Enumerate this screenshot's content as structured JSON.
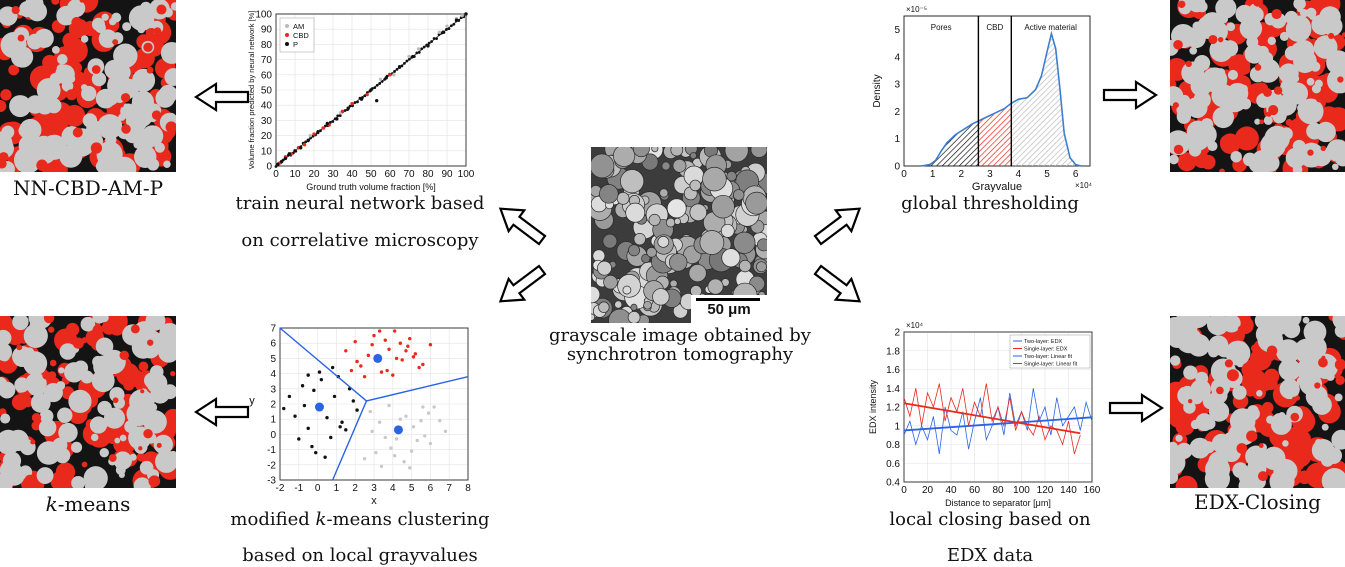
{
  "center": {
    "scale_bar": "50 μm",
    "caption_line1": "grayscale image obtained by",
    "caption_line2": "synchrotron tomography"
  },
  "panels": {
    "nn": {
      "result_label": "NN-CBD-AM-P",
      "caption_line1": "train neural network based",
      "caption_line2": "on correlative microscopy"
    },
    "kmeans": {
      "result_label_italic": "k",
      "result_label_rest": "-means",
      "caption_line1_pre": "modified ",
      "caption_line1_italic": "k",
      "caption_line1_post": "-means clustering",
      "caption_line2": "based on local grayvalues"
    },
    "threshold": {
      "caption_line1": "global thresholding"
    },
    "edx": {
      "result_label": "EDX-Closing",
      "caption_line1": "local closing based on",
      "caption_line2": "EDX data"
    }
  },
  "colors": {
    "cbd_red": "#e8291c",
    "am_gray": "#c9c9c9",
    "pore_black": "#141414",
    "blue": "#2b63e6"
  },
  "chart_data": [
    {
      "type": "scatter",
      "xlabel": "Ground truth volume fraction [%]",
      "ylabel": "Volume fraction predicted by neural network [%]",
      "xlim": [
        0,
        100
      ],
      "ylim": [
        0,
        100
      ],
      "xticks": [
        "0",
        "10",
        "20",
        "30",
        "40",
        "50",
        "60",
        "70",
        "80",
        "90",
        "100"
      ],
      "yticks": [
        "0",
        "10",
        "20",
        "30",
        "40",
        "50",
        "60",
        "70",
        "80",
        "90",
        "100"
      ],
      "legend": [
        "AM",
        "CBD",
        "P"
      ],
      "legend_position": "top-left",
      "grid": true,
      "series": [
        {
          "name": "AM",
          "color": "#bdbdbd",
          "x": [
            18,
            34,
            55,
            62,
            70,
            75,
            86,
            90,
            95,
            98
          ],
          "y": [
            20,
            35,
            57,
            60,
            72,
            77,
            88,
            92,
            97,
            99
          ]
        },
        {
          "name": "CBD",
          "color": "#e8291c",
          "x": [
            2,
            5,
            8,
            12,
            15,
            20,
            25,
            28,
            35,
            40,
            48,
            60
          ],
          "y": [
            2,
            6,
            8,
            12,
            14,
            21,
            25,
            27,
            36,
            41,
            47,
            60
          ]
        },
        {
          "name": "P",
          "color": "#111111",
          "x": [
            1,
            3,
            5,
            7,
            10,
            13,
            17,
            22,
            27,
            32,
            38,
            45,
            50,
            53,
            58,
            65,
            72,
            80,
            88,
            95,
            100
          ],
          "y": [
            1,
            3,
            5,
            8,
            10,
            12,
            17,
            22,
            28,
            31,
            38,
            44,
            50,
            43,
            58,
            65,
            72,
            79,
            88,
            96,
            100
          ]
        }
      ]
    },
    {
      "type": "scatter",
      "xlabel": "x",
      "ylabel": "y",
      "xlim": [
        -2,
        8
      ],
      "ylim": [
        -3,
        7
      ],
      "xticks": [
        "-2",
        "-1",
        "0",
        "1",
        "2",
        "3",
        "4",
        "5",
        "6",
        "7",
        "8"
      ],
      "yticks": [
        "-3",
        "-2",
        "-1",
        "0",
        "1",
        "2",
        "3",
        "4",
        "5",
        "6",
        "7"
      ],
      "grid": true,
      "centroids": [
        {
          "x": 3.2,
          "y": 5.0
        },
        {
          "x": 0.1,
          "y": 1.8
        },
        {
          "x": 4.3,
          "y": 0.3
        }
      ],
      "series": [
        {
          "color": "#e8291c",
          "x": [
            1.5,
            2,
            2.3,
            2.7,
            3,
            3.4,
            3.8,
            4.1,
            4.5,
            4.8,
            5.2,
            5.6,
            6,
            2.5,
            3.1,
            3.6,
            4.2,
            4.9,
            5.4,
            2.1,
            2.9,
            3.7,
            4.4,
            5.1,
            1.8,
            3.3,
            4.0,
            4.7
          ],
          "y": [
            5.5,
            6.1,
            4.5,
            5.2,
            6.5,
            4.1,
            5.6,
            6.8,
            4.9,
            5.8,
            5.3,
            4.6,
            5.9,
            3.8,
            4.9,
            6.2,
            5.0,
            6.3,
            4.4,
            4.8,
            5.9,
            4.2,
            6.0,
            5.1,
            4.2,
            6.8,
            3.9,
            5.5
          ]
        },
        {
          "color": "#111111",
          "x": [
            -1.5,
            -1.2,
            -0.8,
            -0.5,
            -0.2,
            0.2,
            0.5,
            0.9,
            1.3,
            1.7,
            2.1,
            -1.0,
            -0.3,
            0.7,
            1.5,
            -0.7,
            0.1,
            1.1,
            1.9,
            -1.8,
            -0.1,
            0.4,
            1.2,
            -0.5,
            0.8
          ],
          "y": [
            2.5,
            1.2,
            3.2,
            0.4,
            2.9,
            3.6,
            1.1,
            2.5,
            0.8,
            3.0,
            1.6,
            -0.3,
            -0.8,
            -0.2,
            0.3,
            1.9,
            4.1,
            3.8,
            2.2,
            1.7,
            -1.2,
            -1.5,
            0.5,
            3.9,
            4.4
          ]
        },
        {
          "color": "#c9c9c9",
          "x": [
            2.8,
            3.3,
            3.8,
            4.2,
            4.7,
            5.1,
            5.6,
            6.0,
            6.5,
            3.1,
            3.9,
            4.6,
            5.3,
            5.9,
            6.8,
            2.9,
            3.6,
            4.4,
            5.0,
            5.7,
            2.5,
            3.4,
            4.1,
            4.9,
            5.5,
            6.2
          ],
          "y": [
            1.5,
            0.8,
            1.9,
            -0.3,
            1.2,
            0.5,
            1.8,
            -0.6,
            0.9,
            -1.2,
            -0.9,
            -1.8,
            -0.4,
            1.4,
            0.2,
            0.2,
            -0.2,
            1.0,
            -1.1,
            -0.1,
            -1.6,
            -2.1,
            -1.4,
            -2.2,
            0.9,
            1.8
          ]
        }
      ]
    },
    {
      "type": "area",
      "xlabel": "Grayvalue",
      "ylabel": "Density",
      "x_exponent": "×10⁴",
      "y_exponent": "×10⁻⁵",
      "xlim": [
        0,
        6.5
      ],
      "ylim": [
        0,
        5.5
      ],
      "xticks": [
        "0",
        "1",
        "2",
        "3",
        "4",
        "5",
        "6"
      ],
      "yticks": [
        "0",
        "1",
        "2",
        "3",
        "4",
        "5"
      ],
      "regions": [
        "Pores",
        "CBD",
        "Active material"
      ],
      "thresholds": [
        2.6,
        3.75
      ],
      "x": [
        0.6,
        0.9,
        1.1,
        1.3,
        1.5,
        1.8,
        2.1,
        2.4,
        2.6,
        2.9,
        3.2,
        3.5,
        3.75,
        4.0,
        4.3,
        4.6,
        4.8,
        5.0,
        5.15,
        5.3,
        5.45,
        5.6,
        5.8,
        6.0,
        6.2
      ],
      "y": [
        0,
        0.05,
        0.2,
        0.55,
        0.85,
        1.15,
        1.35,
        1.55,
        1.65,
        1.8,
        1.95,
        2.1,
        2.3,
        2.45,
        2.5,
        2.8,
        3.3,
        4.2,
        4.85,
        4.3,
        2.8,
        1.2,
        0.3,
        0.05,
        0
      ]
    },
    {
      "type": "line",
      "xlabel": "Distance to separator [μm]",
      "ylabel": "EDX intensity",
      "y_exponent": "×10⁴",
      "xlim": [
        0,
        160
      ],
      "ylim": [
        0.4,
        2
      ],
      "xticks": [
        "0",
        "20",
        "40",
        "60",
        "80",
        "100",
        "120",
        "140",
        "160"
      ],
      "yticks": [
        "0.4",
        "0.6",
        "0.8",
        "1",
        "1.2",
        "1.4",
        "1.6",
        "1.8",
        "2"
      ],
      "legend": [
        "Two-layer: EDX",
        "Single-layer: EDX",
        "Two-layer: Linear fit",
        "Single-layer: Linear fit"
      ],
      "legend_position": "top-right",
      "grid": true,
      "fits": [
        {
          "name": "Two-layer: Linear fit",
          "color": "#2b63e6",
          "x": [
            0,
            160
          ],
          "y": [
            0.95,
            1.09
          ]
        },
        {
          "name": "Single-layer: Linear fit",
          "color": "#e8291c",
          "x": [
            0,
            150
          ],
          "y": [
            1.24,
            0.92
          ]
        }
      ],
      "series": [
        {
          "name": "Two-layer: EDX",
          "color": "#2b63e6",
          "x": [
            0,
            5,
            10,
            15,
            20,
            25,
            30,
            35,
            40,
            45,
            50,
            55,
            60,
            65,
            70,
            75,
            80,
            85,
            90,
            95,
            100,
            105,
            110,
            115,
            120,
            125,
            130,
            135,
            140,
            145,
            150,
            155,
            160
          ],
          "y": [
            0.9,
            1.05,
            0.8,
            1.0,
            0.85,
            1.1,
            0.7,
            1.2,
            0.95,
            0.9,
            1.15,
            0.75,
            1.05,
            1.3,
            0.85,
            1.0,
            1.2,
            0.9,
            1.35,
            1.0,
            1.15,
            0.95,
            1.4,
            1.05,
            1.2,
            0.9,
            1.3,
            1.0,
            1.1,
            1.2,
            0.95,
            1.25,
            1.05
          ]
        },
        {
          "name": "Single-layer: EDX",
          "color": "#e8291c",
          "x": [
            0,
            5,
            10,
            15,
            20,
            25,
            30,
            35,
            40,
            45,
            50,
            55,
            60,
            65,
            70,
            75,
            80,
            85,
            90,
            95,
            100,
            105,
            110,
            115,
            120,
            125,
            130,
            135,
            140,
            145,
            150
          ],
          "y": [
            1.3,
            1.1,
            1.4,
            1.0,
            1.35,
            1.2,
            1.45,
            1.05,
            1.3,
            1.15,
            1.4,
            1.0,
            1.25,
            1.1,
            1.45,
            1.05,
            1.2,
            1.0,
            1.3,
            0.95,
            1.15,
            1.0,
            0.9,
            1.1,
            0.85,
            1.0,
            0.95,
            0.8,
            1.05,
            0.7,
            0.9
          ]
        }
      ]
    }
  ]
}
